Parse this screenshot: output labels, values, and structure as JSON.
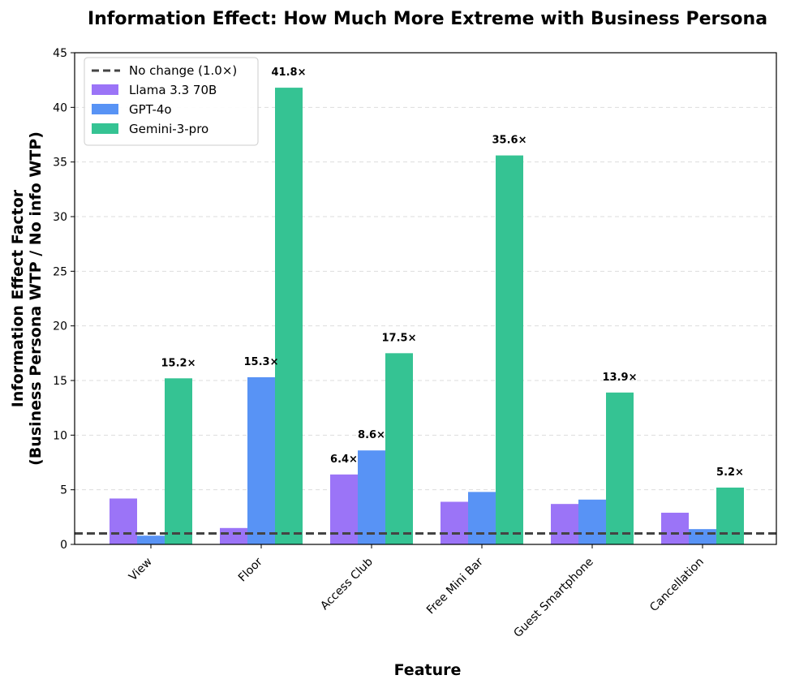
{
  "chart_data": {
    "type": "bar",
    "title": "Information Effect: How Much More Extreme with Business Persona",
    "xlabel": "Feature",
    "ylabel_lines": [
      "Information Effect Factor",
      "(Business Persona WTP / No info WTP)"
    ],
    "categories": [
      "View",
      "Floor",
      "Access Club",
      "Free Mini Bar",
      "Guest Smartphone",
      "Cancellation"
    ],
    "ylim": [
      0,
      45
    ],
    "yticks": [
      0,
      5,
      10,
      15,
      20,
      25,
      30,
      35,
      40,
      45
    ],
    "grid": "horizontal dashed",
    "legend_position": "top-left",
    "reference_line": {
      "label": "No change (1.0×)",
      "value": 1.0,
      "color": "#444444"
    },
    "series": [
      {
        "name": "Llama 3.3 70B",
        "color": "#9b74f7",
        "values": [
          4.2,
          1.5,
          6.4,
          3.9,
          3.7,
          2.9
        ],
        "labels": [
          "",
          "",
          "6.4×",
          "",
          "",
          ""
        ]
      },
      {
        "name": "GPT-4o",
        "color": "#5893f5",
        "values": [
          0.8,
          15.3,
          8.6,
          4.8,
          4.1,
          1.4
        ],
        "labels": [
          "",
          "15.3×",
          "8.6×",
          "",
          "",
          ""
        ]
      },
      {
        "name": "Gemini-3-pro",
        "color": "#35c393",
        "values": [
          15.2,
          41.8,
          17.5,
          35.6,
          13.9,
          5.2
        ],
        "labels": [
          "15.2×",
          "41.8×",
          "17.5×",
          "35.6×",
          "13.9×",
          "5.2×"
        ]
      }
    ]
  }
}
